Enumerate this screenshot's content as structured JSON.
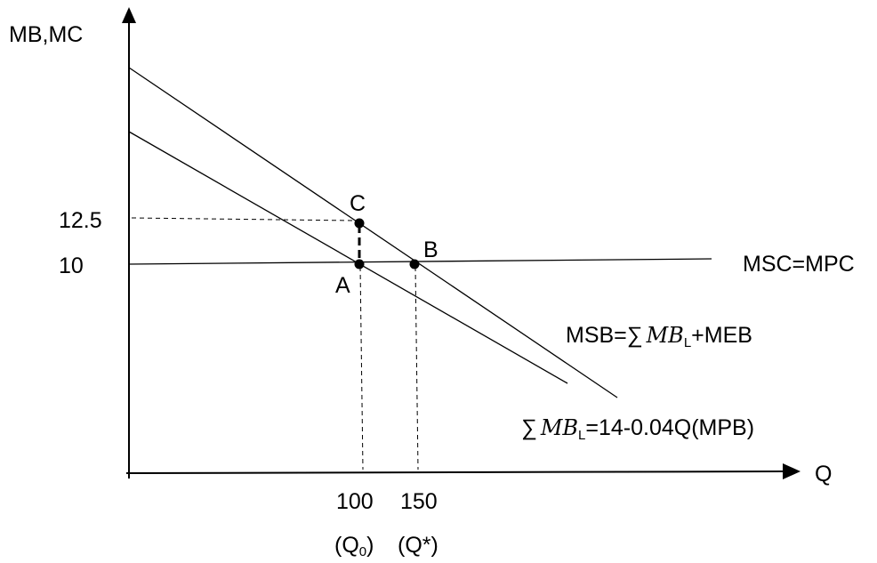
{
  "axes": {
    "y_label": "MB,MC",
    "x_label": "Q"
  },
  "ticks": {
    "y_12_5": "12.5",
    "y_10": "10",
    "x_100": "100",
    "x_150": "150",
    "x_100_sub_open": "(Q",
    "x_100_sub_index": "0",
    "x_100_sub_close": ")",
    "x_150_sub": "(Q*)"
  },
  "points": {
    "A": "A",
    "B": "B",
    "C": "C"
  },
  "curves": {
    "msc": "MSC=MPC",
    "msb_prefix": "MSB=",
    "msb_sum": "∑",
    "msb_mb": "MB",
    "msb_sub": "L",
    "msb_suffix": "+MEB",
    "mpb_sum": "∑",
    "mpb_mb": "MB",
    "mpb_sub": "L",
    "mpb_suffix": "=14-0.04Q(MPB)"
  }
}
